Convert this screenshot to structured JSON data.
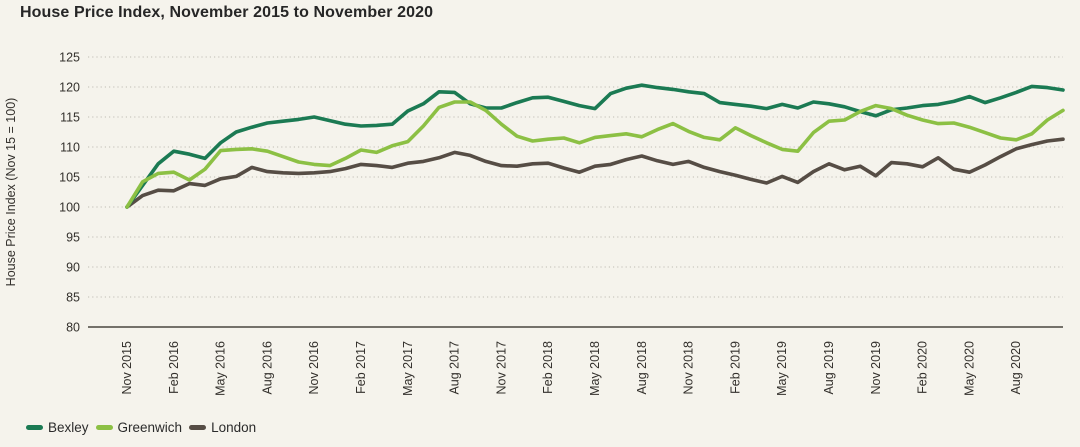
{
  "page": {
    "background": "#f5f3ec"
  },
  "header": {
    "title": "House Price Index, November 2015 to November 2020"
  },
  "chart_data": {
    "type": "line",
    "title": "House Price Index, November 2015 to November 2020",
    "xlabel": "",
    "ylabel": "House Price Index (Nov 15 = 100)",
    "ylim": [
      80,
      125
    ],
    "y_ticks": [
      125,
      120,
      115,
      110,
      105,
      100,
      95,
      90,
      85,
      80
    ],
    "grid": "horizontal-dotted",
    "legend_position": "bottom-left",
    "x_tick_labels": [
      "Nov 2015",
      "Feb 2016",
      "May 2016",
      "Aug 2016",
      "Nov 2016",
      "Feb 2017",
      "May 2017",
      "Aug 2017",
      "Nov 2017",
      "Feb 2018",
      "May 2018",
      "Aug 2018",
      "Nov 2018",
      "Feb 2019",
      "May 2019",
      "Aug 2019",
      "Nov 2019",
      "Feb 2020",
      "May 2020",
      "Aug 2020"
    ],
    "x_tick_every": 3,
    "months": [
      "Nov 2015",
      "Dec 2015",
      "Jan 2016",
      "Feb 2016",
      "Mar 2016",
      "Apr 2016",
      "May 2016",
      "Jun 2016",
      "Jul 2016",
      "Aug 2016",
      "Sep 2016",
      "Oct 2016",
      "Nov 2016",
      "Dec 2016",
      "Jan 2017",
      "Feb 2017",
      "Mar 2017",
      "Apr 2017",
      "May 2017",
      "Jun 2017",
      "Jul 2017",
      "Aug 2017",
      "Sep 2017",
      "Oct 2017",
      "Nov 2017",
      "Dec 2017",
      "Jan 2018",
      "Feb 2018",
      "Mar 2018",
      "Apr 2018",
      "May 2018",
      "Jun 2018",
      "Jul 2018",
      "Aug 2018",
      "Sep 2018",
      "Oct 2018",
      "Nov 2018",
      "Dec 2018",
      "Jan 2019",
      "Feb 2019",
      "Mar 2019",
      "Apr 2019",
      "May 2019",
      "Jun 2019",
      "Jul 2019",
      "Aug 2019",
      "Sep 2019",
      "Oct 2019",
      "Nov 2019",
      "Dec 2019",
      "Jan 2020",
      "Feb 2020",
      "Mar 2020",
      "Apr 2020",
      "May 2020",
      "Jun 2020",
      "Jul 2020",
      "Aug 2020",
      "Sep 2020",
      "Oct 2020",
      "Nov 2020"
    ],
    "series": [
      {
        "name": "Bexley",
        "color": "#1b7a53",
        "values": [
          100.0,
          103.6,
          107.2,
          109.3,
          108.8,
          108.1,
          110.7,
          112.5,
          113.3,
          114.0,
          114.3,
          114.6,
          115.0,
          114.4,
          113.8,
          113.5,
          113.6,
          113.8,
          116.0,
          117.2,
          119.2,
          119.1,
          117.2,
          116.5,
          116.5,
          117.4,
          118.2,
          118.3,
          117.6,
          116.9,
          116.4,
          118.9,
          119.8,
          120.3,
          119.9,
          119.6,
          119.2,
          118.9,
          117.4,
          117.1,
          116.8,
          116.4,
          117.1,
          116.5,
          117.5,
          117.2,
          116.7,
          115.9,
          115.2,
          116.2,
          116.5,
          116.9,
          117.1,
          117.6,
          118.4,
          117.4,
          118.2,
          119.1,
          120.1,
          119.9,
          119.5
        ]
      },
      {
        "name": "Greenwich",
        "color": "#8cc044",
        "values": [
          100.0,
          104.2,
          105.6,
          105.8,
          104.5,
          106.3,
          109.4,
          109.6,
          109.7,
          109.3,
          108.4,
          107.5,
          107.1,
          106.9,
          108.1,
          109.5,
          109.1,
          110.2,
          110.9,
          113.5,
          116.6,
          117.5,
          117.5,
          116.1,
          113.8,
          111.8,
          111.0,
          111.3,
          111.5,
          110.7,
          111.6,
          111.9,
          112.2,
          111.7,
          112.9,
          113.9,
          112.6,
          111.6,
          111.2,
          113.2,
          111.9,
          110.7,
          109.6,
          109.3,
          112.4,
          114.3,
          114.5,
          115.9,
          116.9,
          116.4,
          115.3,
          114.5,
          113.9,
          114.0,
          113.3,
          112.4,
          111.5,
          111.2,
          112.2,
          114.5,
          116.1
        ]
      },
      {
        "name": "London",
        "color": "#564d45",
        "values": [
          100.0,
          101.9,
          102.8,
          102.7,
          103.9,
          103.6,
          104.7,
          105.1,
          106.6,
          105.9,
          105.7,
          105.6,
          105.7,
          105.9,
          106.4,
          107.1,
          106.9,
          106.6,
          107.3,
          107.6,
          108.2,
          109.1,
          108.6,
          107.6,
          106.9,
          106.8,
          107.2,
          107.3,
          106.5,
          105.8,
          106.8,
          107.1,
          107.9,
          108.5,
          107.7,
          107.1,
          107.6,
          106.6,
          105.9,
          105.3,
          104.6,
          104.0,
          105.1,
          104.1,
          105.9,
          107.2,
          106.2,
          106.8,
          105.2,
          107.4,
          107.2,
          106.7,
          108.2,
          106.3,
          105.8,
          107.0,
          108.4,
          109.7,
          110.4,
          111.0,
          111.3
        ]
      }
    ],
    "style": {
      "background": "#f5f3ec",
      "gridline_color": "#cbc8c0",
      "axis_line_color": "#4a463f",
      "text_color": "#33302c",
      "title_color": "#262626"
    }
  }
}
